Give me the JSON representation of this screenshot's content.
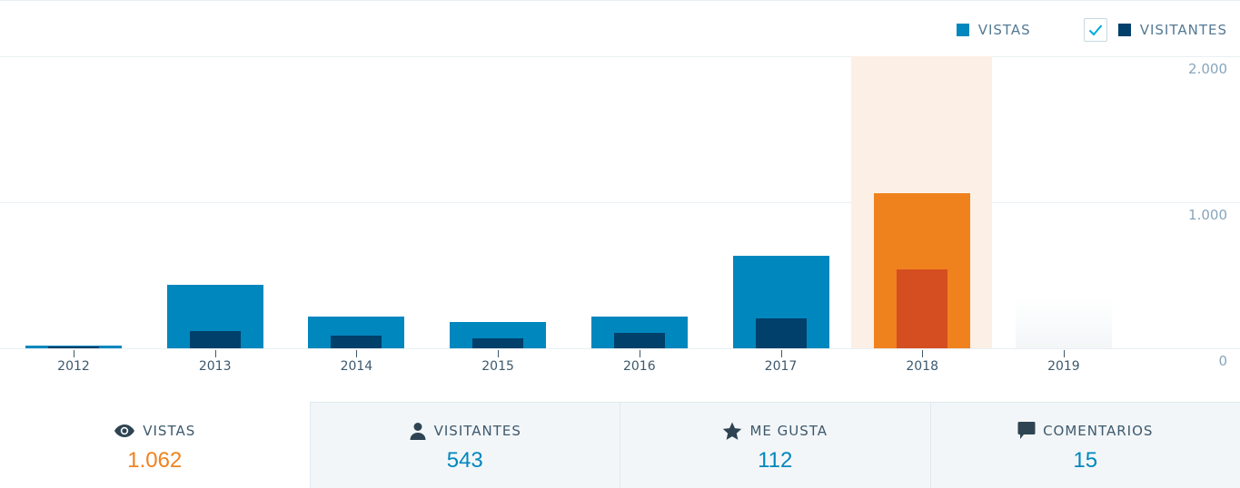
{
  "legend": {
    "items": [
      {
        "label": "VISTAS",
        "color": "#0087be",
        "checkbox": false
      },
      {
        "label": "VISITANTES",
        "color": "#00406a",
        "checkbox": true,
        "checked": true
      }
    ]
  },
  "chart_data": {
    "type": "bar",
    "title": "",
    "xlabel": "",
    "ylabel": "",
    "categories": [
      "2012",
      "2013",
      "2014",
      "2015",
      "2016",
      "2017",
      "2018",
      "2019"
    ],
    "series": [
      {
        "name": "Vistas",
        "color": "#0087be",
        "highlight_color": "#f0821e",
        "values": [
          20,
          436,
          218,
          180,
          218,
          636,
          1062,
          0
        ]
      },
      {
        "name": "Visitantes",
        "color": "#00406a",
        "highlight_color": "#d54e21",
        "values": [
          10,
          120,
          87,
          70,
          105,
          205,
          543,
          0
        ]
      }
    ],
    "ylim": [
      0,
      2000
    ],
    "yticks": [
      0,
      1000,
      2000
    ],
    "ytick_labels": [
      "0",
      "1.000",
      "2.000"
    ],
    "grid": true,
    "legend_position": "top-right",
    "highlighted_category": "2018",
    "placeholder_category": "2019"
  },
  "axis": {
    "y_labels": [
      "2.000",
      "1.000",
      "0"
    ]
  },
  "tabs": [
    {
      "label": "VISTAS",
      "icon": "eye-icon",
      "value": "1.062",
      "active": true
    },
    {
      "label": "VISITANTES",
      "icon": "person-icon",
      "value": "543",
      "active": false
    },
    {
      "label": "ME GUSTA",
      "icon": "star-icon",
      "value": "112",
      "active": false
    },
    {
      "label": "COMENTARIOS",
      "icon": "comment-icon",
      "value": "15",
      "active": false
    }
  ]
}
